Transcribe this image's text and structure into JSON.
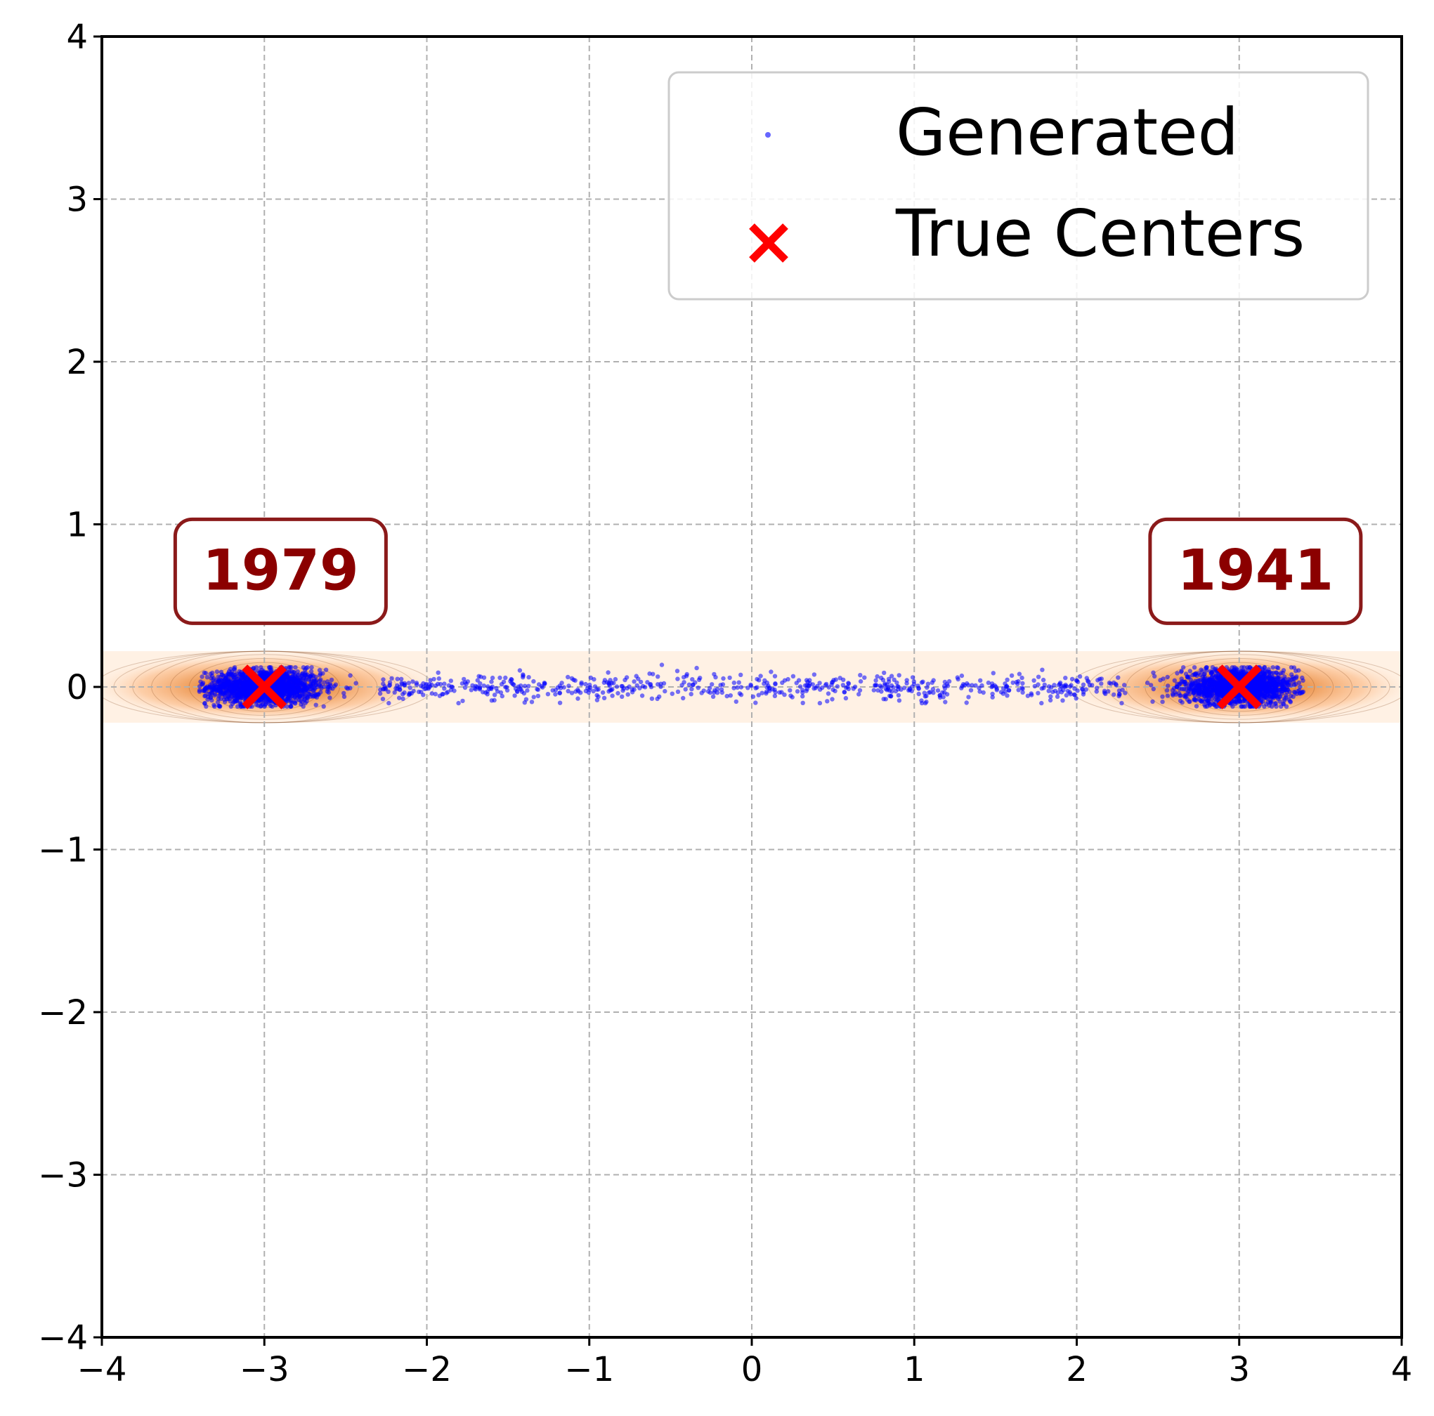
{
  "chart_data": {
    "type": "scatter",
    "title": "",
    "xlabel": "",
    "ylabel": "",
    "xlim": [
      -4,
      4
    ],
    "ylim": [
      -4,
      4
    ],
    "xticks": [
      -4,
      -3,
      -2,
      -1,
      0,
      1,
      2,
      3,
      4
    ],
    "yticks": [
      -4,
      -3,
      -2,
      -1,
      0,
      1,
      2,
      3,
      4
    ],
    "xtick_labels": [
      "−4",
      "−3",
      "−2",
      "−1",
      "0",
      "1",
      "2",
      "3",
      "4"
    ],
    "ytick_labels": [
      "−4",
      "−3",
      "−2",
      "−1",
      "0",
      "1",
      "2",
      "3",
      "4"
    ],
    "grid": true,
    "legend_position": "top-right",
    "series": [
      {
        "name": "Generated",
        "kind": "scatter-cloud",
        "color": "#0000ff",
        "point_count_approx": 3920,
        "distribution": {
          "clusters": [
            {
              "center": [
                -3,
                0
              ],
              "count_approx": 1979,
              "x_spread": [
                -3.4,
                -2.3
              ],
              "y_spread": [
                -0.12,
                0.12
              ]
            },
            {
              "center": [
                3,
                0
              ],
              "count_approx": 1941,
              "x_spread": [
                2.3,
                3.4
              ],
              "y_spread": [
                -0.12,
                0.12
              ]
            }
          ],
          "bridge": {
            "x_range": [
              -2.3,
              2.3
            ],
            "y_spread": [
              -0.1,
              0.15
            ]
          }
        }
      },
      {
        "name": "True Centers",
        "kind": "marker",
        "marker": "x",
        "color": "#ff0000",
        "points": [
          [
            -3,
            0
          ],
          [
            3,
            0
          ]
        ]
      }
    ],
    "density_band": {
      "colormap": "oranges",
      "y_range": [
        -0.22,
        0.22
      ],
      "x_range": [
        -4,
        4
      ],
      "peaks": [
        [
          -3,
          0
        ],
        [
          3,
          0
        ]
      ]
    },
    "annotations": [
      {
        "text": "1979",
        "x": -2.9,
        "y": 0.72
      },
      {
        "text": "1941",
        "x": 3.1,
        "y": 0.72
      }
    ]
  }
}
